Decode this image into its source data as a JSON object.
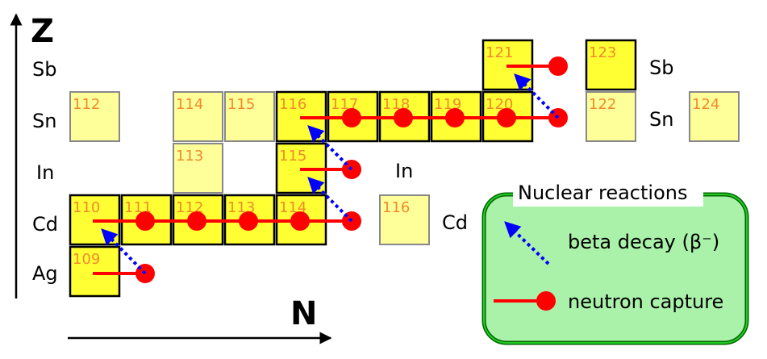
{
  "axes": {
    "z_label": "Z",
    "n_label": "N"
  },
  "rows": [
    {
      "id": "sb",
      "label": "Sb"
    },
    {
      "id": "sn",
      "label": "Sn"
    },
    {
      "id": "in",
      "label": "In"
    },
    {
      "id": "cd",
      "label": "Cd"
    },
    {
      "id": "ag",
      "label": "Ag"
    }
  ],
  "right_labels": [
    {
      "id": "sb",
      "label": "Sb"
    },
    {
      "id": "sn",
      "label": "Sn"
    },
    {
      "id": "in",
      "label": "In"
    },
    {
      "id": "cd",
      "label": "Cd"
    }
  ],
  "isotopes": [
    {
      "id": "ag-109",
      "mass": "109",
      "process": true
    },
    {
      "id": "cd-110",
      "mass": "110",
      "process": true
    },
    {
      "id": "cd-111",
      "mass": "111",
      "process": true
    },
    {
      "id": "cd-112",
      "mass": "112",
      "process": true
    },
    {
      "id": "cd-113",
      "mass": "113",
      "process": true
    },
    {
      "id": "cd-114",
      "mass": "114",
      "process": true
    },
    {
      "id": "cd-116",
      "mass": "116",
      "process": false
    },
    {
      "id": "in-113",
      "mass": "113",
      "process": false
    },
    {
      "id": "in-115",
      "mass": "115",
      "process": true
    },
    {
      "id": "sn-112",
      "mass": "112",
      "process": false
    },
    {
      "id": "sn-114",
      "mass": "114",
      "process": false
    },
    {
      "id": "sn-115",
      "mass": "115",
      "process": false
    },
    {
      "id": "sn-116",
      "mass": "116",
      "process": true
    },
    {
      "id": "sn-117",
      "mass": "117",
      "process": true
    },
    {
      "id": "sn-118",
      "mass": "118",
      "process": true
    },
    {
      "id": "sn-119",
      "mass": "119",
      "process": true
    },
    {
      "id": "sn-120",
      "mass": "120",
      "process": true
    },
    {
      "id": "sn-122",
      "mass": "122",
      "process": false
    },
    {
      "id": "sn-124",
      "mass": "124",
      "process": false
    },
    {
      "id": "sb-121",
      "mass": "121",
      "process": true
    },
    {
      "id": "sb-123",
      "mass": "123",
      "process": true
    }
  ],
  "legend": {
    "title": "Nuclear reactions",
    "beta_decay_label": "beta decay (β⁻)",
    "neutron_capture_label": "neutron capture"
  },
  "colors": {
    "process_fill": "#ffff33",
    "stable_fill": "#ffff99",
    "mass_text": "#f08a2c",
    "capture": "#ff0000",
    "beta": "#0000ff",
    "legend_fill": "#aaf2aa",
    "legend_border_outer": "#006600",
    "legend_border_inner": "#22cc22"
  }
}
